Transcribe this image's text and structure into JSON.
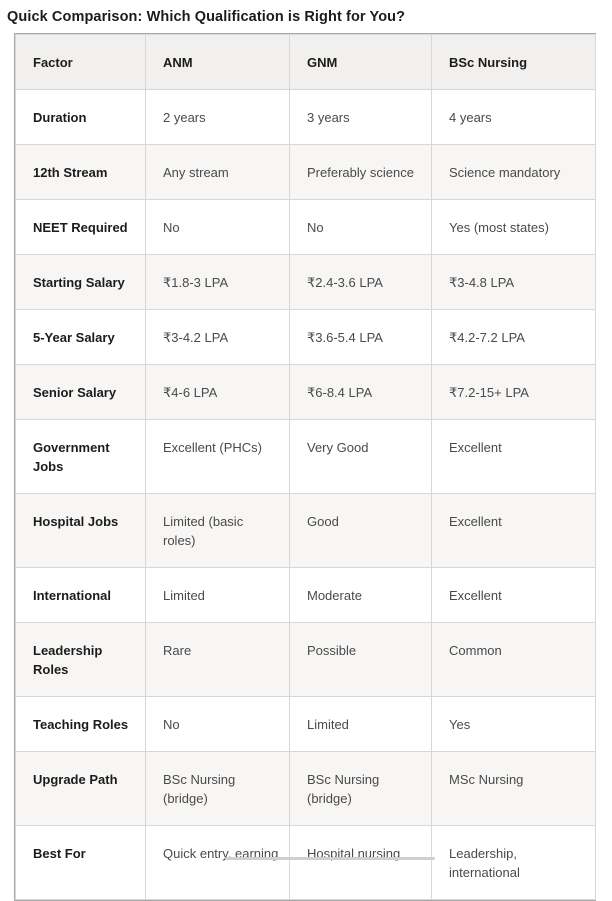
{
  "page": {
    "title": "Quick Comparison: Which Qualification is Right for You?"
  },
  "table": {
    "columns": [
      "Factor",
      "ANM",
      "GNM",
      "BSc Nursing"
    ],
    "rows": [
      [
        "Duration",
        "2 years",
        "3 years",
        "4 years"
      ],
      [
        "12th Stream",
        "Any stream",
        "Preferably science",
        "Science mandatory"
      ],
      [
        "NEET Required",
        "No",
        "No",
        "Yes (most states)"
      ],
      [
        "Starting Salary",
        "₹1.8-3 LPA",
        "₹2.4-3.6 LPA",
        "₹3-4.8 LPA"
      ],
      [
        "5-Year Salary",
        "₹3-4.2 LPA",
        "₹3.6-5.4 LPA",
        "₹4.2-7.2 LPA"
      ],
      [
        "Senior Salary",
        "₹4-6 LPA",
        "₹6-8.4 LPA",
        "₹7.2-15+ LPA"
      ],
      [
        "Government Jobs",
        "Excellent (PHCs)",
        "Very Good",
        "Excellent"
      ],
      [
        "Hospital Jobs",
        "Limited (basic roles)",
        "Good",
        "Excellent"
      ],
      [
        "International",
        "Limited",
        "Moderate",
        "Excellent"
      ],
      [
        "Leadership Roles",
        "Rare",
        "Possible",
        "Common"
      ],
      [
        "Teaching Roles",
        "No",
        "Limited",
        "Yes"
      ],
      [
        "Upgrade Path",
        "BSc Nursing (bridge)",
        "BSc Nursing (bridge)",
        "MSc Nursing"
      ],
      [
        "Best For",
        "Quick entry, earning",
        "Hospital nursing",
        "Leadership, international"
      ]
    ]
  },
  "colors": {
    "title_text": "#1c1c1c",
    "header_bg": "#f1f0ef",
    "stripe_bg": "#f7f6f5",
    "cell_text": "#4a4a4a",
    "inner_border": "#d8d7d7",
    "outer_border": "#a9a9a9",
    "scrollbar_thumb": "#cfcfcf"
  }
}
